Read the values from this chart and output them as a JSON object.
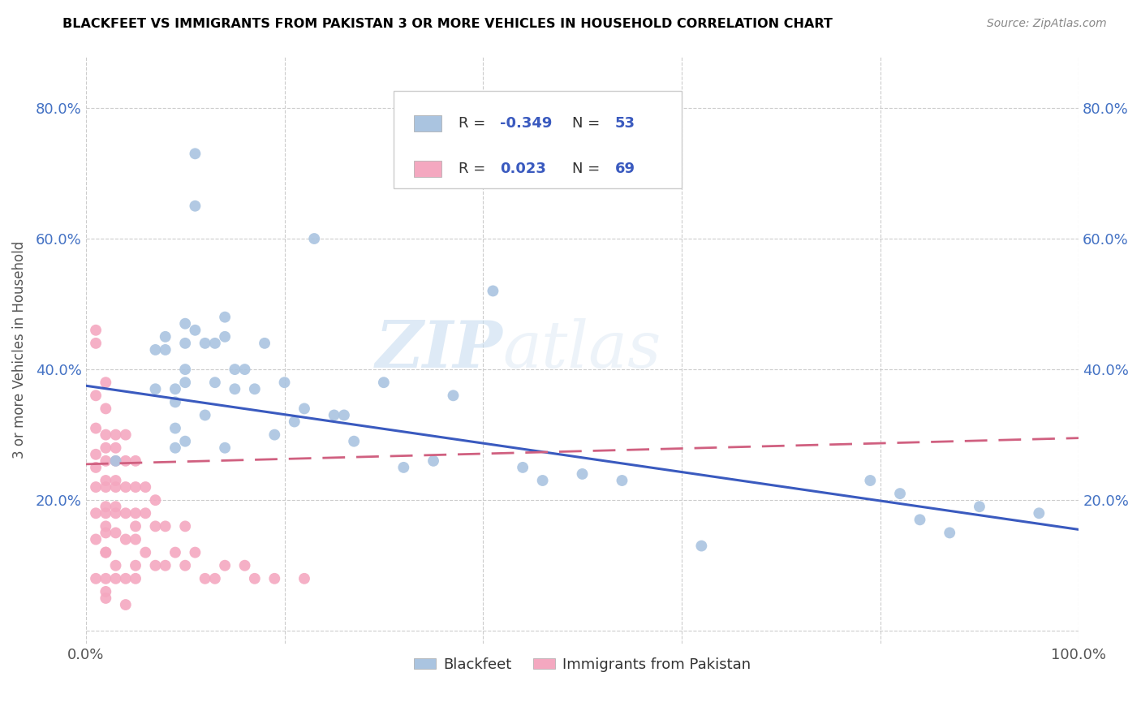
{
  "title": "BLACKFEET VS IMMIGRANTS FROM PAKISTAN 3 OR MORE VEHICLES IN HOUSEHOLD CORRELATION CHART",
  "source": "Source: ZipAtlas.com",
  "ylabel": "3 or more Vehicles in Household",
  "xlim": [
    0.0,
    1.0
  ],
  "ylim": [
    -0.02,
    0.88
  ],
  "x_ticks": [
    0.0,
    0.2,
    0.4,
    0.6,
    0.8,
    1.0
  ],
  "x_tick_labels": [
    "0.0%",
    "",
    "",
    "",
    "",
    "100.0%"
  ],
  "y_ticks": [
    0.0,
    0.2,
    0.4,
    0.6,
    0.8
  ],
  "y_tick_labels": [
    "",
    "20.0%",
    "40.0%",
    "60.0%",
    "80.0%"
  ],
  "legend_labels": [
    "Blackfeet",
    "Immigrants from Pakistan"
  ],
  "blue_R": "-0.349",
  "blue_N": "53",
  "pink_R": "0.023",
  "pink_N": "69",
  "blue_color": "#aac4e0",
  "pink_color": "#f4a8c0",
  "blue_line_color": "#3a5abf",
  "pink_line_color": "#d06080",
  "watermark_zip": "ZIP",
  "watermark_atlas": "atlas",
  "blue_points_x": [
    0.03,
    0.07,
    0.07,
    0.08,
    0.08,
    0.09,
    0.09,
    0.09,
    0.09,
    0.1,
    0.1,
    0.1,
    0.1,
    0.1,
    0.11,
    0.11,
    0.11,
    0.12,
    0.12,
    0.13,
    0.13,
    0.14,
    0.14,
    0.14,
    0.15,
    0.15,
    0.16,
    0.17,
    0.18,
    0.19,
    0.2,
    0.21,
    0.22,
    0.23,
    0.25,
    0.26,
    0.27,
    0.3,
    0.32,
    0.35,
    0.37,
    0.41,
    0.44,
    0.46,
    0.5,
    0.54,
    0.62,
    0.79,
    0.82,
    0.84,
    0.87,
    0.9,
    0.96
  ],
  "blue_points_y": [
    0.26,
    0.37,
    0.43,
    0.45,
    0.43,
    0.37,
    0.35,
    0.31,
    0.28,
    0.47,
    0.44,
    0.4,
    0.38,
    0.29,
    0.73,
    0.65,
    0.46,
    0.44,
    0.33,
    0.44,
    0.38,
    0.48,
    0.45,
    0.28,
    0.4,
    0.37,
    0.4,
    0.37,
    0.44,
    0.3,
    0.38,
    0.32,
    0.34,
    0.6,
    0.33,
    0.33,
    0.29,
    0.38,
    0.25,
    0.26,
    0.36,
    0.52,
    0.25,
    0.23,
    0.24,
    0.23,
    0.13,
    0.23,
    0.21,
    0.17,
    0.15,
    0.19,
    0.18
  ],
  "pink_points_x": [
    0.01,
    0.01,
    0.01,
    0.01,
    0.01,
    0.01,
    0.01,
    0.01,
    0.01,
    0.01,
    0.02,
    0.02,
    0.02,
    0.02,
    0.02,
    0.02,
    0.02,
    0.02,
    0.02,
    0.02,
    0.02,
    0.02,
    0.02,
    0.02,
    0.02,
    0.02,
    0.03,
    0.03,
    0.03,
    0.03,
    0.03,
    0.03,
    0.03,
    0.03,
    0.03,
    0.03,
    0.04,
    0.04,
    0.04,
    0.04,
    0.04,
    0.04,
    0.04,
    0.05,
    0.05,
    0.05,
    0.05,
    0.05,
    0.05,
    0.05,
    0.06,
    0.06,
    0.06,
    0.07,
    0.07,
    0.07,
    0.08,
    0.08,
    0.09,
    0.1,
    0.1,
    0.11,
    0.12,
    0.13,
    0.14,
    0.16,
    0.17,
    0.19,
    0.22
  ],
  "pink_points_y": [
    0.46,
    0.44,
    0.36,
    0.31,
    0.27,
    0.25,
    0.22,
    0.18,
    0.14,
    0.08,
    0.38,
    0.34,
    0.3,
    0.26,
    0.22,
    0.18,
    0.15,
    0.12,
    0.08,
    0.06,
    0.28,
    0.23,
    0.19,
    0.16,
    0.12,
    0.05,
    0.3,
    0.26,
    0.22,
    0.18,
    0.15,
    0.1,
    0.08,
    0.28,
    0.23,
    0.19,
    0.3,
    0.26,
    0.22,
    0.18,
    0.14,
    0.08,
    0.04,
    0.26,
    0.22,
    0.18,
    0.14,
    0.1,
    0.16,
    0.08,
    0.22,
    0.18,
    0.12,
    0.2,
    0.16,
    0.1,
    0.16,
    0.1,
    0.12,
    0.16,
    0.1,
    0.12,
    0.08,
    0.08,
    0.1,
    0.1,
    0.08,
    0.08,
    0.08
  ],
  "blue_line_x0": 0.0,
  "blue_line_y0": 0.375,
  "blue_line_x1": 1.0,
  "blue_line_y1": 0.155,
  "pink_line_x0": 0.0,
  "pink_line_y0": 0.255,
  "pink_line_x1": 1.0,
  "pink_line_y1": 0.295
}
